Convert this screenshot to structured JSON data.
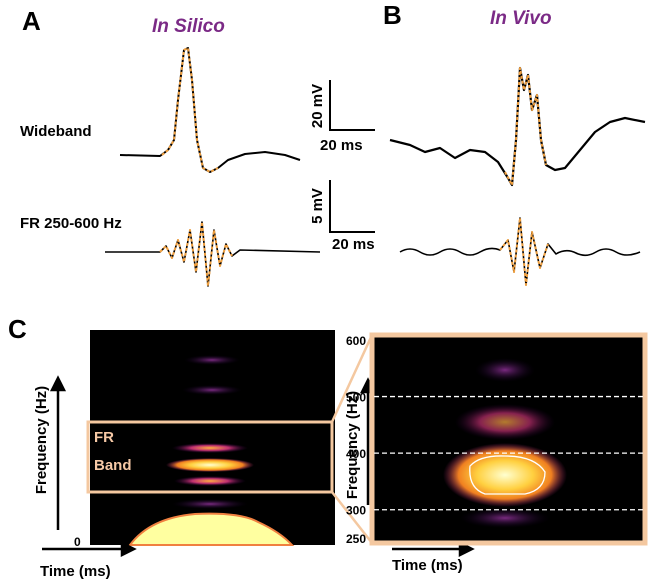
{
  "panel_a": {
    "label": "A",
    "title": "In Silico"
  },
  "panel_b": {
    "label": "B",
    "title": "In Vivo"
  },
  "row_labels": [
    "Wideband",
    "FR 250-600 Hz"
  ],
  "scale_bars": [
    {
      "vertical": "20 mV",
      "horizontal": "20 ms"
    },
    {
      "vertical": "5 mV",
      "horizontal": "20 ms"
    }
  ],
  "panel_c": {
    "label": "C",
    "left": {
      "y_label": "Frequency (Hz)",
      "x_label": "Time (ms)",
      "origin_label": "0",
      "box_label": [
        "FR",
        "Band"
      ]
    },
    "right": {
      "y_label": "Frequency (Hz)",
      "x_label": "Time (ms)",
      "ylim": [
        250,
        600
      ],
      "yticks": [
        250,
        300,
        400,
        500,
        600
      ]
    }
  }
}
